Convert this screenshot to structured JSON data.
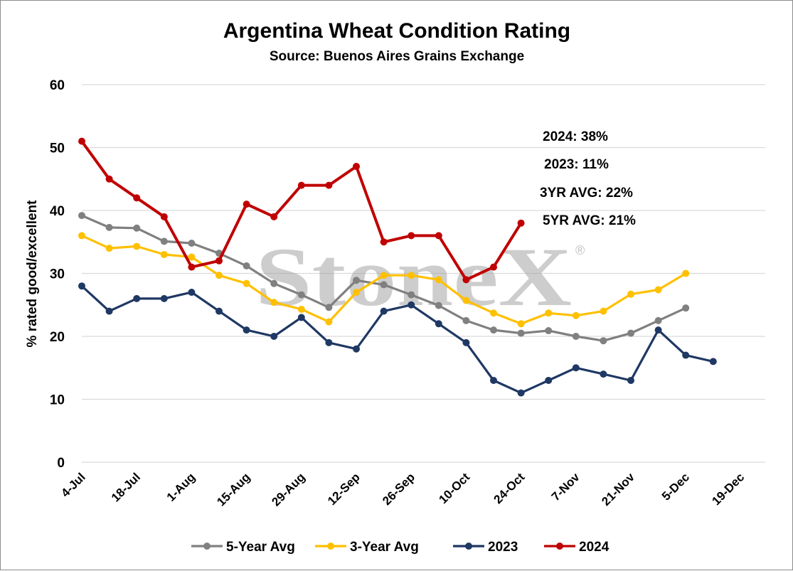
{
  "chart_data": {
    "type": "line",
    "title": "Argentina Wheat Condition Rating",
    "subtitle": "Source: Buenos Aires Grains Exchange",
    "xlabel": "",
    "ylabel": "% rated good/excellent",
    "ylim": [
      0,
      60
    ],
    "yticks": [
      0,
      10,
      20,
      30,
      40,
      50,
      60
    ],
    "xlim": [
      "4-Jul",
      "19-Dec"
    ],
    "xticks": [
      "4-Jul",
      "18-Jul",
      "1-Aug",
      "15-Aug",
      "29-Aug",
      "12-Sep",
      "26-Sep",
      "10-Oct",
      "24-Oct",
      "7-Nov",
      "21-Nov",
      "5-Dec",
      "19-Dec"
    ],
    "grid": "horizontal",
    "legend": "bottom",
    "watermark": "StoneX",
    "watermark_mark": "®",
    "series": [
      {
        "name": "5-Year Avg",
        "color": "#808080",
        "x": [
          "4-Jul",
          "11-Jul",
          "18-Jul",
          "25-Jul",
          "1-Aug",
          "8-Aug",
          "15-Aug",
          "22-Aug",
          "29-Aug",
          "5-Sep",
          "12-Sep",
          "19-Sep",
          "26-Sep",
          "3-Oct",
          "10-Oct",
          "17-Oct",
          "24-Oct",
          "31-Oct",
          "7-Nov",
          "14-Nov",
          "21-Nov",
          "28-Nov",
          "5-Dec"
        ],
        "values": [
          39.2,
          37.3,
          37.2,
          35.1,
          34.8,
          33.2,
          31.2,
          28.4,
          26.6,
          24.6,
          28.9,
          28.2,
          26.6,
          24.9,
          22.5,
          21.0,
          20.5,
          20.9,
          20.0,
          19.3,
          20.5,
          22.5,
          24.5
        ]
      },
      {
        "name": "3-Year Avg",
        "color": "#ffc000",
        "x": [
          "4-Jul",
          "11-Jul",
          "18-Jul",
          "25-Jul",
          "1-Aug",
          "8-Aug",
          "15-Aug",
          "22-Aug",
          "29-Aug",
          "5-Sep",
          "12-Sep",
          "19-Sep",
          "26-Sep",
          "3-Oct",
          "10-Oct",
          "17-Oct",
          "24-Oct",
          "31-Oct",
          "7-Nov",
          "14-Nov",
          "21-Nov",
          "28-Nov",
          "5-Dec"
        ],
        "values": [
          36.0,
          34.0,
          34.3,
          33.0,
          32.6,
          29.7,
          28.4,
          25.4,
          24.3,
          22.3,
          27.0,
          29.7,
          29.7,
          29.0,
          25.7,
          23.7,
          22.0,
          23.7,
          23.3,
          24.0,
          26.7,
          27.4,
          30.0
        ]
      },
      {
        "name": "2023",
        "color": "#1f3864",
        "x": [
          "4-Jul",
          "11-Jul",
          "18-Jul",
          "25-Jul",
          "1-Aug",
          "8-Aug",
          "15-Aug",
          "22-Aug",
          "29-Aug",
          "5-Sep",
          "12-Sep",
          "19-Sep",
          "26-Sep",
          "3-Oct",
          "10-Oct",
          "17-Oct",
          "24-Oct",
          "31-Oct",
          "7-Nov",
          "14-Nov",
          "21-Nov",
          "28-Nov",
          "5-Dec",
          "12-Dec"
        ],
        "values": [
          28,
          24,
          26,
          26,
          27,
          24,
          21,
          20,
          23,
          19,
          18,
          24,
          25,
          22,
          19,
          13,
          11,
          13,
          15,
          14,
          13,
          21,
          17,
          16
        ]
      },
      {
        "name": "2024",
        "color": "#c00000",
        "x": [
          "4-Jul",
          "11-Jul",
          "18-Jul",
          "25-Jul",
          "1-Aug",
          "8-Aug",
          "15-Aug",
          "22-Aug",
          "29-Aug",
          "5-Sep",
          "12-Sep",
          "19-Sep",
          "26-Sep",
          "3-Oct",
          "10-Oct",
          "17-Oct",
          "24-Oct"
        ],
        "values": [
          51,
          45,
          42,
          39,
          31,
          32,
          41,
          39,
          44,
          44,
          47,
          35,
          36,
          36,
          29,
          31,
          38
        ]
      }
    ],
    "annotations": [
      "2024: 38%",
      "2023: 11%",
      "3YR AVG: 22%",
      "5YR AVG: 21%"
    ]
  }
}
